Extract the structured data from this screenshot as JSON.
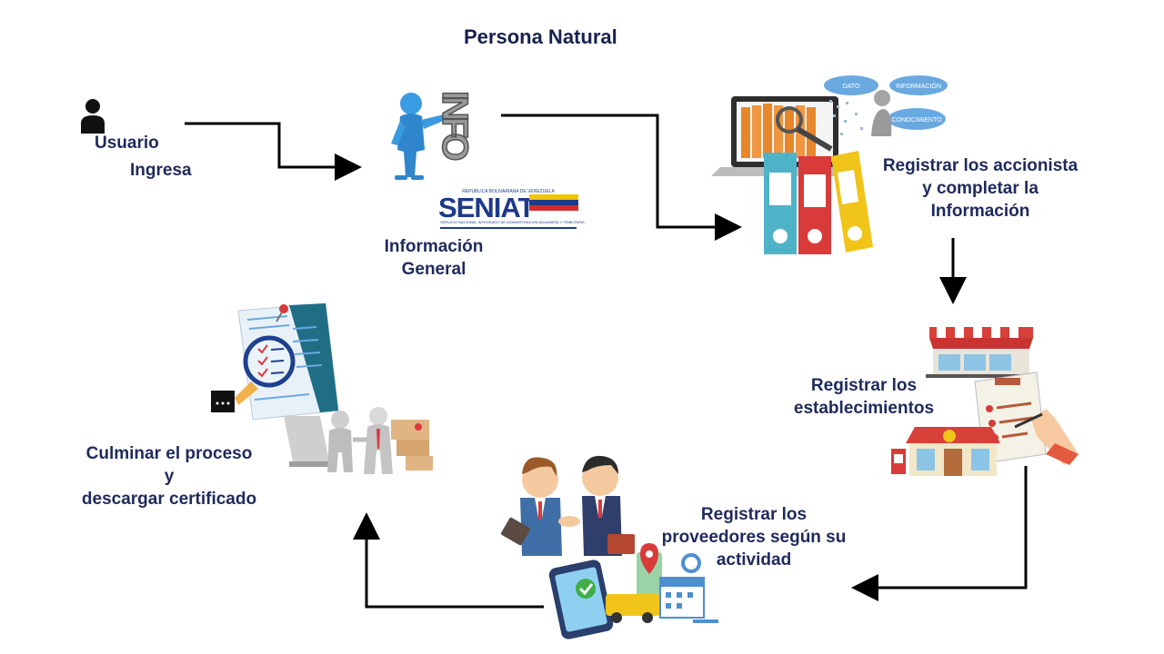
{
  "diagram": {
    "title": "Persona Natural",
    "steps": {
      "user": {
        "line1": "Usuario",
        "line2": "Ingresa"
      },
      "general_info": {
        "line1": "Información",
        "line2": "General"
      },
      "shareholders": {
        "line1": "Registrar los accionista",
        "line2": "y completar la",
        "line3": "Información"
      },
      "establishments": {
        "line1": "Registrar los",
        "line2": "establecimientos"
      },
      "suppliers": {
        "line1": "Registrar los",
        "line2": "proveedores según su",
        "line3": "actividad"
      },
      "finish": {
        "line1": "Culminar el proceso",
        "line2": "y",
        "line3": "descargar certificado"
      }
    },
    "image_text": {
      "info_sign": "INFO",
      "senat_brand": "SENIAT",
      "senat_top": "REPUBLICA BOLIVARIANA DE VENEZUELA",
      "senat_sub": "SERVICIO NACIONAL INTEGRADO DE ADMINISTRACION ADUANERA Y TRIBUTARIA",
      "cloud_data": "DATO",
      "cloud_info": "INFORMACIÓN",
      "cloud_knowledge": "CONOCIMIENTO"
    },
    "colors": {
      "text": "#1f2a5c",
      "arrow": "#000000",
      "person_blue": "#3b9be0",
      "folder_orange": "#e8862a",
      "binder_teal": "#4fb3c8",
      "binder_red": "#d93a3a",
      "binder_yellow": "#f0c419",
      "awning_red": "#d8403a"
    }
  }
}
